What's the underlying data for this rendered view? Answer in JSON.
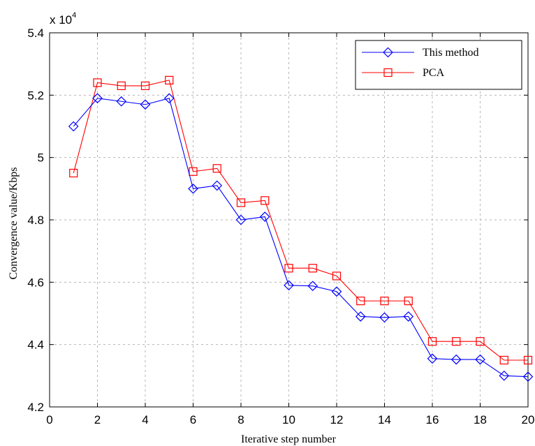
{
  "chart_data": {
    "type": "line",
    "xlabel": "Iterative step number",
    "ylabel": "Convergence value/Kbps",
    "y_multiplier": {
      "base": "x 10",
      "exponent": "4"
    },
    "xlim": [
      0,
      20
    ],
    "ylim": [
      42000,
      54000
    ],
    "xticks": [
      0,
      2,
      4,
      6,
      8,
      10,
      12,
      14,
      16,
      18,
      20
    ],
    "xtick_labels": [
      "0",
      "2",
      "4",
      "6",
      "8",
      "10",
      "12",
      "14",
      "16",
      "18",
      "20"
    ],
    "yticks": [
      42000,
      44000,
      46000,
      48000,
      50000,
      52000,
      54000
    ],
    "ytick_labels": [
      "4.2",
      "4.4",
      "4.6",
      "4.8",
      "5",
      "5.2",
      "5.4"
    ],
    "grid": true,
    "legend_position": "top-right",
    "x": [
      1,
      2,
      3,
      4,
      5,
      6,
      7,
      8,
      9,
      10,
      11,
      12,
      13,
      14,
      15,
      16,
      17,
      18,
      19,
      20
    ],
    "series": [
      {
        "name": "This method",
        "color": "#0000ff",
        "marker": "diamond",
        "values": [
          51000,
          51900,
          51800,
          51700,
          51900,
          49000,
          49100,
          48000,
          48100,
          45900,
          45880,
          45700,
          44900,
          44870,
          44900,
          43550,
          43520,
          43520,
          43000,
          42970
        ]
      },
      {
        "name": "PCA",
        "color": "#ff0000",
        "marker": "square",
        "values": [
          49500,
          52400,
          52300,
          52300,
          52480,
          49550,
          49650,
          48550,
          48620,
          46450,
          46450,
          46200,
          45400,
          45400,
          45400,
          44100,
          44100,
          44100,
          43500,
          43500
        ]
      }
    ]
  }
}
